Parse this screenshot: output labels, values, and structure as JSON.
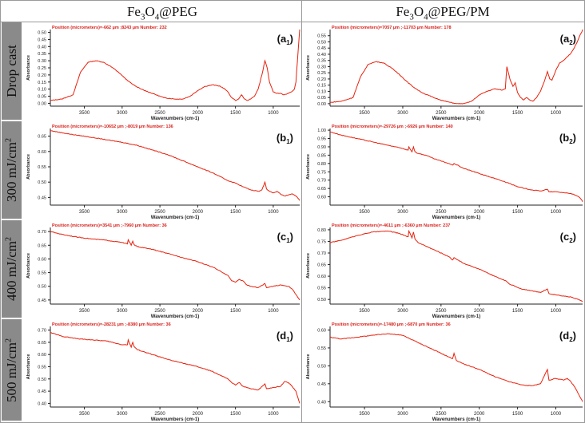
{
  "figure": {
    "columns": [
      {
        "main": "Fe",
        "sub1": "3",
        "mid": "O",
        "sub2": "4",
        "rest": "@PEG"
      },
      {
        "main": "Fe",
        "sub1": "3",
        "mid": "O",
        "sub2": "4",
        "rest": "@PEG/PM"
      }
    ],
    "rows": [
      {
        "text": "Drop cast",
        "sup": ""
      },
      {
        "text": "300 mJ/cm",
        "sup": "2"
      },
      {
        "text": "400 mJ/cm",
        "sup": "2"
      },
      {
        "text": "500 mJ/cm",
        "sup": "2"
      }
    ],
    "colors": {
      "line": "#e8200c",
      "position_text": "#d8201a",
      "axes": "#222222",
      "row_label_bg": "#8a8a8a",
      "frame": "#9a9a9a"
    }
  },
  "chart_data": [
    {
      "id": "a1",
      "type": "line",
      "panel_letter": "a",
      "panel_index": "1",
      "position_text": "Position (micrometers)=-662 µm ;8243 µm   Number: 232",
      "xlabel": "Wavenumbers (cm-1)",
      "ylabel": "Absorbance",
      "xlim": [
        3950,
        650
      ],
      "x_reversed": true,
      "xticks": [
        3500,
        3000,
        2500,
        2000,
        1500,
        1000
      ],
      "ylim": [
        -0.02,
        0.52
      ],
      "yticks": [
        0.0,
        0.05,
        0.1,
        0.15,
        0.2,
        0.25,
        0.3,
        0.35,
        0.4,
        0.45,
        0.5
      ],
      "series": [
        {
          "x": [
            3950,
            3800,
            3650,
            3550,
            3450,
            3350,
            3250,
            3150,
            3050,
            2950,
            2850,
            2750,
            2600,
            2450,
            2300,
            2200,
            2100,
            2000,
            1900,
            1800,
            1700,
            1640,
            1600,
            1550,
            1500,
            1460,
            1420,
            1380,
            1340,
            1300,
            1250,
            1200,
            1150,
            1110,
            1080,
            1050,
            1000,
            950,
            900,
            860,
            800,
            760,
            720,
            700,
            680,
            660,
            650
          ],
          "y": [
            0.02,
            0.03,
            0.06,
            0.22,
            0.29,
            0.3,
            0.29,
            0.26,
            0.22,
            0.17,
            0.13,
            0.1,
            0.07,
            0.04,
            0.03,
            0.03,
            0.05,
            0.09,
            0.12,
            0.13,
            0.12,
            0.1,
            0.08,
            0.04,
            0.02,
            0.03,
            0.06,
            0.03,
            0.02,
            0.03,
            0.05,
            0.1,
            0.2,
            0.3,
            0.25,
            0.15,
            0.08,
            0.07,
            0.07,
            0.06,
            0.07,
            0.08,
            0.1,
            0.15,
            0.3,
            0.45,
            0.52
          ]
        }
      ]
    },
    {
      "id": "a2",
      "type": "line",
      "panel_letter": "a",
      "panel_index": "2",
      "position_text": "Position (micrometers)=7057 µm ;-11703 µm   Number: 178",
      "xlabel": "Wavenumbers (cm-1)",
      "ylabel": "Absorbance",
      "xlim": [
        3950,
        650
      ],
      "x_reversed": true,
      "xticks": [
        3500,
        3000,
        2500,
        2000,
        1500,
        1000
      ],
      "ylim": [
        -0.02,
        0.6
      ],
      "yticks": [
        0.0,
        0.05,
        0.1,
        0.15,
        0.2,
        0.25,
        0.3,
        0.35,
        0.4,
        0.45,
        0.5,
        0.55
      ],
      "series": [
        {
          "x": [
            3950,
            3800,
            3650,
            3550,
            3450,
            3350,
            3250,
            3150,
            3050,
            2950,
            2850,
            2750,
            2600,
            2450,
            2300,
            2200,
            2100,
            2000,
            1900,
            1800,
            1700,
            1660,
            1640,
            1600,
            1560,
            1530,
            1500,
            1460,
            1420,
            1380,
            1340,
            1300,
            1250,
            1200,
            1150,
            1110,
            1080,
            1050,
            1000,
            950,
            900,
            850,
            800,
            760,
            720,
            700,
            680,
            660,
            650
          ],
          "y": [
            0.01,
            0.02,
            0.05,
            0.22,
            0.32,
            0.34,
            0.33,
            0.29,
            0.24,
            0.18,
            0.13,
            0.09,
            0.05,
            0.02,
            0.0,
            0.0,
            0.02,
            0.07,
            0.1,
            0.12,
            0.11,
            0.12,
            0.3,
            0.2,
            0.14,
            0.17,
            0.09,
            0.05,
            0.03,
            0.05,
            0.03,
            0.02,
            0.05,
            0.1,
            0.18,
            0.26,
            0.2,
            0.19,
            0.27,
            0.33,
            0.35,
            0.38,
            0.41,
            0.45,
            0.5,
            0.53,
            0.56,
            0.58,
            0.6
          ]
        }
      ]
    },
    {
      "id": "b1",
      "type": "line",
      "panel_letter": "b",
      "panel_index": "1",
      "position_text": "Position (micrometers)=-10652 µm ;-8019 µm   Number: 136",
      "xlabel": "Wavenumbers (cm-1)",
      "ylabel": "Absorbance",
      "xlim": [
        3950,
        650
      ],
      "x_reversed": true,
      "xticks": [
        3500,
        3000,
        2500,
        2000,
        1500,
        1000
      ],
      "ylim": [
        0.425,
        0.675
      ],
      "yticks": [
        0.45,
        0.5,
        0.55,
        0.6,
        0.65
      ],
      "series": [
        {
          "x": [
            3950,
            3700,
            3450,
            3200,
            3000,
            2800,
            2600,
            2400,
            2200,
            2000,
            1800,
            1600,
            1500,
            1400,
            1300,
            1200,
            1150,
            1110,
            1090,
            1050,
            1000,
            950,
            900,
            850,
            800,
            750,
            700,
            650
          ],
          "y": [
            0.668,
            0.657,
            0.648,
            0.638,
            0.63,
            0.62,
            0.605,
            0.59,
            0.57,
            0.55,
            0.53,
            0.505,
            0.497,
            0.485,
            0.475,
            0.47,
            0.475,
            0.5,
            0.478,
            0.47,
            0.465,
            0.47,
            0.46,
            0.455,
            0.458,
            0.462,
            0.455,
            0.44
          ]
        }
      ]
    },
    {
      "id": "b2",
      "type": "line",
      "panel_letter": "b",
      "panel_index": "2",
      "position_text": "Position (micrometers)=-29726 µm ;-6926 µm   Number: 140",
      "xlabel": "Wavenumbers (cm-1)",
      "ylabel": "Absorbance",
      "xlim": [
        3950,
        650
      ],
      "x_reversed": true,
      "xticks": [
        3500,
        3000,
        2500,
        2000,
        1500,
        1000
      ],
      "ylim": [
        0.55,
        1.01
      ],
      "yticks": [
        0.6,
        0.65,
        0.7,
        0.75,
        0.8,
        0.85,
        0.9,
        0.95,
        1.0
      ],
      "series": [
        {
          "x": [
            3950,
            3800,
            3600,
            3400,
            3200,
            3000,
            2930,
            2920,
            2880,
            2860,
            2840,
            2800,
            2700,
            2600,
            2400,
            2350,
            2330,
            2200,
            2000,
            1800,
            1600,
            1500,
            1400,
            1300,
            1200,
            1110,
            1090,
            1000,
            900,
            800,
            750,
            700,
            660,
            650
          ],
          "y": [
            0.99,
            0.97,
            0.95,
            0.93,
            0.91,
            0.89,
            0.88,
            0.9,
            0.87,
            0.9,
            0.87,
            0.86,
            0.85,
            0.83,
            0.8,
            0.79,
            0.8,
            0.77,
            0.74,
            0.71,
            0.68,
            0.66,
            0.65,
            0.64,
            0.635,
            0.645,
            0.63,
            0.63,
            0.625,
            0.62,
            0.61,
            0.6,
            0.58,
            0.57
          ]
        }
      ]
    },
    {
      "id": "c1",
      "type": "line",
      "panel_letter": "c",
      "panel_index": "1",
      "position_text": "Position (micrometers)=3541 µm ;-7960 µm   Number: 36",
      "xlabel": "Wavenumbers (cm-1)",
      "ylabel": "Absorbance",
      "xlim": [
        3950,
        650
      ],
      "x_reversed": true,
      "xticks": [
        3500,
        3000,
        2500,
        2000,
        1500,
        1000
      ],
      "ylim": [
        0.435,
        0.715
      ],
      "yticks": [
        0.45,
        0.5,
        0.55,
        0.6,
        0.65,
        0.7
      ],
      "series": [
        {
          "x": [
            3950,
            3800,
            3600,
            3400,
            3200,
            3000,
            2930,
            2920,
            2880,
            2860,
            2840,
            2800,
            2600,
            2400,
            2200,
            2000,
            1800,
            1600,
            1550,
            1500,
            1450,
            1400,
            1350,
            1300,
            1200,
            1110,
            1090,
            1000,
            900,
            800,
            750,
            700,
            650
          ],
          "y": [
            0.7,
            0.69,
            0.68,
            0.673,
            0.668,
            0.66,
            0.655,
            0.67,
            0.65,
            0.665,
            0.652,
            0.645,
            0.635,
            0.62,
            0.605,
            0.59,
            0.57,
            0.54,
            0.52,
            0.515,
            0.525,
            0.52,
            0.505,
            0.5,
            0.495,
            0.51,
            0.495,
            0.5,
            0.505,
            0.5,
            0.49,
            0.47,
            0.45
          ]
        }
      ]
    },
    {
      "id": "c2",
      "type": "line",
      "panel_letter": "c",
      "panel_index": "2",
      "position_text": "Position (micrometers)=-4611 µm ;-6360 µm   Number: 237",
      "xlabel": "Wavenumbers (cm-1)",
      "ylabel": "Absorbance",
      "xlim": [
        3950,
        650
      ],
      "x_reversed": true,
      "xticks": [
        3500,
        3000,
        2500,
        2000,
        1500,
        1000
      ],
      "ylim": [
        0.48,
        0.81
      ],
      "yticks": [
        0.5,
        0.55,
        0.6,
        0.65,
        0.7,
        0.75,
        0.8
      ],
      "series": [
        {
          "x": [
            3950,
            3800,
            3600,
            3400,
            3200,
            3050,
            2930,
            2920,
            2880,
            2860,
            2840,
            2800,
            2600,
            2400,
            2350,
            2330,
            2200,
            2000,
            1800,
            1650,
            1600,
            1550,
            1450,
            1350,
            1200,
            1110,
            1090,
            1000,
            900,
            800,
            700,
            650
          ],
          "y": [
            0.745,
            0.755,
            0.775,
            0.79,
            0.795,
            0.785,
            0.77,
            0.795,
            0.765,
            0.79,
            0.76,
            0.745,
            0.715,
            0.685,
            0.67,
            0.68,
            0.655,
            0.63,
            0.6,
            0.58,
            0.565,
            0.56,
            0.545,
            0.54,
            0.53,
            0.545,
            0.525,
            0.52,
            0.515,
            0.51,
            0.5,
            0.49
          ]
        }
      ]
    },
    {
      "id": "d1",
      "type": "line",
      "panel_letter": "d",
      "panel_index": "1",
      "position_text": "Position (micrometers)=-28231 µm ;-8380 µm   Number: 36",
      "xlabel": "Wavenumbers (cm-1)",
      "ylabel": "Absorbance",
      "xlim": [
        3950,
        650
      ],
      "x_reversed": true,
      "xticks": [
        3500,
        3000,
        2500,
        2000,
        1500,
        1000
      ],
      "ylim": [
        0.385,
        0.715
      ],
      "yticks": [
        0.4,
        0.45,
        0.5,
        0.55,
        0.6,
        0.65,
        0.7
      ],
      "series": [
        {
          "x": [
            3950,
            3800,
            3600,
            3400,
            3200,
            3000,
            2930,
            2920,
            2880,
            2860,
            2840,
            2800,
            2600,
            2400,
            2200,
            2000,
            1800,
            1600,
            1550,
            1500,
            1450,
            1400,
            1350,
            1300,
            1200,
            1110,
            1090,
            1000,
            900,
            850,
            800,
            750,
            700,
            650
          ],
          "y": [
            0.69,
            0.675,
            0.665,
            0.66,
            0.655,
            0.64,
            0.64,
            0.66,
            0.63,
            0.65,
            0.632,
            0.62,
            0.6,
            0.58,
            0.565,
            0.55,
            0.53,
            0.5,
            0.485,
            0.475,
            0.485,
            0.47,
            0.465,
            0.46,
            0.455,
            0.48,
            0.46,
            0.465,
            0.47,
            0.49,
            0.485,
            0.47,
            0.45,
            0.4
          ]
        }
      ]
    },
    {
      "id": "d2",
      "type": "line",
      "panel_letter": "d",
      "panel_index": "2",
      "position_text": "Position (micrometers)=-17480 µm ;-6870 µm   Number: 36",
      "xlabel": "Wavenumbers (cm-1)",
      "ylabel": "Absorbance",
      "xlim": [
        3950,
        650
      ],
      "x_reversed": true,
      "xticks": [
        3500,
        3000,
        2500,
        2000,
        1500,
        1000
      ],
      "ylim": [
        0.385,
        0.61
      ],
      "yticks": [
        0.4,
        0.45,
        0.5,
        0.55,
        0.6
      ],
      "series": [
        {
          "x": [
            3950,
            3800,
            3600,
            3400,
            3200,
            3000,
            2900,
            2800,
            2600,
            2400,
            2350,
            2330,
            2300,
            2200,
            2000,
            1800,
            1600,
            1500,
            1400,
            1300,
            1200,
            1110,
            1090,
            1000,
            900,
            850,
            800,
            750,
            700,
            650
          ],
          "y": [
            0.58,
            0.575,
            0.58,
            0.585,
            0.59,
            0.585,
            0.575,
            0.565,
            0.545,
            0.525,
            0.52,
            0.535,
            0.515,
            0.505,
            0.49,
            0.47,
            0.455,
            0.45,
            0.445,
            0.445,
            0.45,
            0.49,
            0.46,
            0.465,
            0.46,
            0.465,
            0.455,
            0.44,
            0.42,
            0.4
          ]
        }
      ]
    }
  ]
}
